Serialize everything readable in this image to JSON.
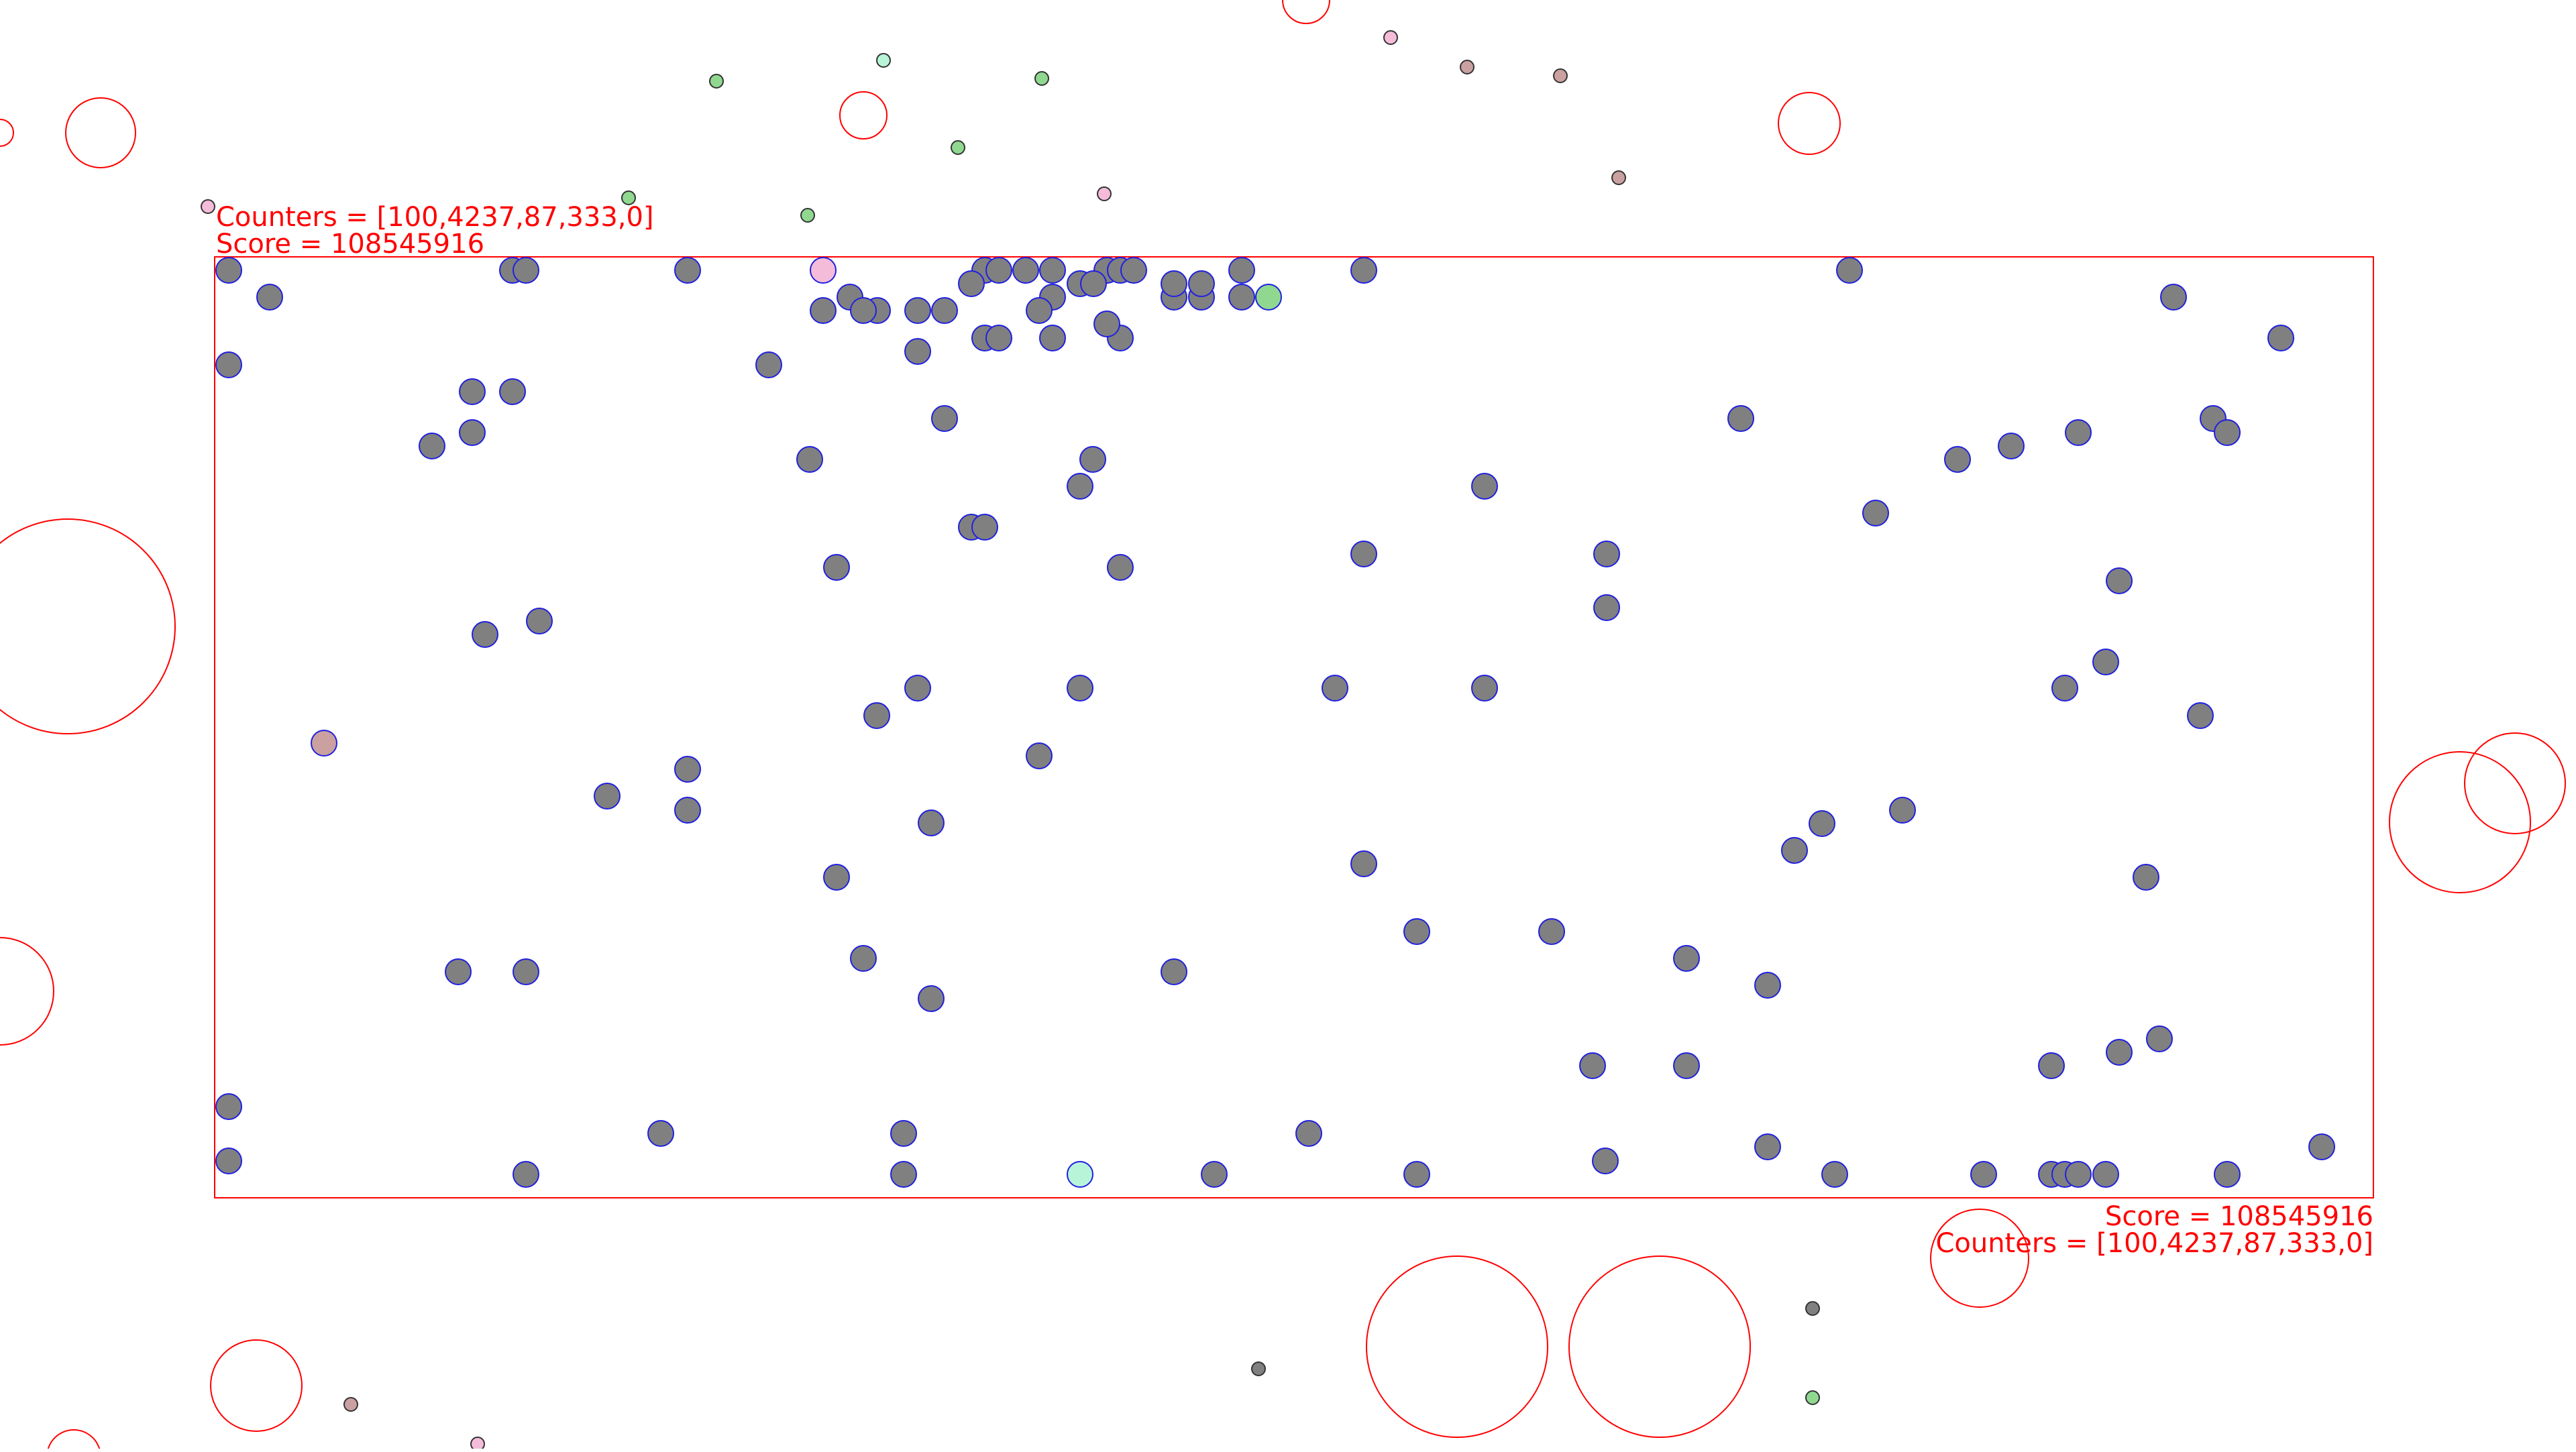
{
  "hud": {
    "top_left": {
      "counters": "Counters = [100,4237,87,333,0]",
      "score": "Score = 108545916"
    },
    "bottom_right": {
      "score": "Score = 108545916",
      "counters": "Counters = [100,4237,87,333,0]"
    },
    "color": "#ff0000"
  },
  "colors": {
    "arena_border": "#ff0000",
    "bubble_outline": "#ff0000",
    "pellet_fill": "#808080",
    "pellet_stroke": "#2020e0",
    "particle_stroke": "#333333"
  },
  "game": {
    "counters": [
      100,
      4237,
      87,
      333,
      0
    ],
    "score": 108545916,
    "pellet_count": 133,
    "special_pellets": [
      {
        "name": "pink-pellet",
        "color": "#f4bcd8"
      },
      {
        "name": "green-pellet",
        "color": "#90d890"
      },
      {
        "name": "tan-pellet",
        "color": "#caa0a0"
      },
      {
        "name": "mint-pellet",
        "color": "#b8f5d8"
      }
    ],
    "particle_colors": [
      "#90d890",
      "#b8f5d8",
      "#f4bcd8",
      "#caa0a0",
      "#808080"
    ]
  }
}
